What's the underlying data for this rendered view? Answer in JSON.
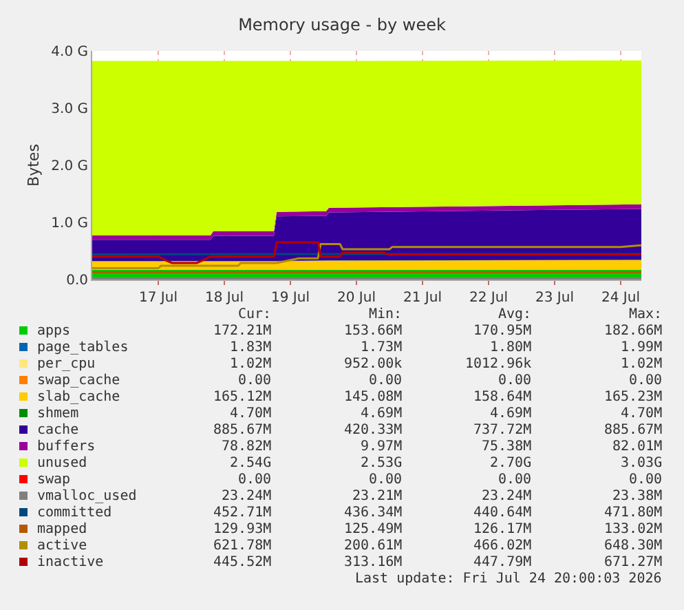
{
  "chart_data": {
    "type": "area",
    "title": "Memory usage - by week",
    "ylabel": "Bytes",
    "stacked": true,
    "grid": true,
    "legend": "bottom",
    "x": [
      "2026-07-16T00:00",
      "2026-07-17T19:00",
      "2026-07-17T20:00",
      "2026-07-18T18:00",
      "2026-07-18T19:00",
      "2026-07-19T13:00",
      "2026-07-19T14:00",
      "2026-07-24T07:30"
    ],
    "xlim": [
      "2026-07-16T00:00",
      "2026-07-24T07:30"
    ],
    "xticks": [
      {
        "value": "2026-07-17",
        "label": "17 Jul"
      },
      {
        "value": "2026-07-18",
        "label": "18 Jul"
      },
      {
        "value": "2026-07-19",
        "label": "19 Jul"
      },
      {
        "value": "2026-07-20",
        "label": "20 Jul"
      },
      {
        "value": "2026-07-21",
        "label": "21 Jul"
      },
      {
        "value": "2026-07-22",
        "label": "22 Jul"
      },
      {
        "value": "2026-07-23",
        "label": "23 Jul"
      },
      {
        "value": "2026-07-24",
        "label": "24 Jul"
      }
    ],
    "ylim": [
      0,
      4
    ],
    "yticks": [
      {
        "value": 0,
        "label": "0.0"
      },
      {
        "value": 1,
        "label": "1.0 G"
      },
      {
        "value": 2,
        "label": "2.0 G"
      },
      {
        "value": 3,
        "label": "3.0 G"
      },
      {
        "value": 4,
        "label": "4.0 G"
      }
    ],
    "series": [
      {
        "name": "apps",
        "color": "#00cc00",
        "values": [
          0.17,
          0.17,
          0.17,
          0.17,
          0.17,
          0.17,
          0.17,
          0.17
        ]
      },
      {
        "name": "page_tables",
        "color": "#0066b3",
        "values": [
          null,
          null,
          null,
          null,
          null,
          null,
          null,
          null
        ]
      },
      {
        "name": "per_cpu",
        "color": "#ffe680",
        "values": [
          null,
          null,
          null,
          null,
          null,
          null,
          null,
          null
        ]
      },
      {
        "name": "swap_cache",
        "color": "#ff8000",
        "values": [
          null,
          null,
          null,
          null,
          null,
          null,
          null,
          null
        ]
      },
      {
        "name": "slab_cache",
        "color": "#ffcc00",
        "values": [
          0.15,
          0.15,
          0.15,
          0.15,
          0.15,
          0.16,
          0.16,
          0.17
        ]
      },
      {
        "name": "shmem",
        "color": "#008f00",
        "values": [
          0.005,
          0.005,
          0.005,
          0.005,
          0.005,
          0.005,
          0.005,
          0.005
        ]
      },
      {
        "name": "cache",
        "color": "#330099",
        "values": [
          0.37,
          0.37,
          0.44,
          0.44,
          0.78,
          0.78,
          0.84,
          0.89
        ]
      },
      {
        "name": "buffers",
        "color": "#990099",
        "values": [
          0.08,
          0.08,
          0.08,
          0.08,
          0.08,
          0.08,
          0.08,
          0.08
        ]
      },
      {
        "name": "unused",
        "color": "#ccff00",
        "values": [
          3.05,
          3.05,
          2.98,
          2.98,
          2.64,
          2.63,
          2.57,
          2.52
        ]
      },
      {
        "name": "swap",
        "color": "#ff0000",
        "values": [
          null,
          null,
          null,
          null,
          null,
          null,
          null,
          null
        ]
      },
      {
        "name": "vmalloc_used",
        "color": "#808080",
        "type": "line",
        "x": [
          "2026-07-16T00:00",
          "2026-07-24T07:30"
        ],
        "values": [
          0.02,
          0.02
        ]
      },
      {
        "name": "committed",
        "color": "#00487d",
        "type": "line",
        "x": [
          "2026-07-16T00:00",
          "2026-07-24T07:30"
        ],
        "values": [
          0.44,
          0.45
        ]
      },
      {
        "name": "mapped",
        "color": "#b35a00",
        "type": "line",
        "x": [
          "2026-07-16T00:00",
          "2026-07-24T07:30"
        ],
        "values": [
          0.13,
          0.13
        ]
      },
      {
        "name": "active",
        "color": "#b38f00",
        "type": "line",
        "x": [
          "2026-07-16T00:00",
          "2026-07-17T00:00",
          "2026-07-17T01:00",
          "2026-07-17T19:00",
          "2026-07-18T05:00",
          "2026-07-18T06:00",
          "2026-07-18T19:00",
          "2026-07-19T03:00",
          "2026-07-19T10:00",
          "2026-07-19T11:00",
          "2026-07-19T18:00",
          "2026-07-19T19:00",
          "2026-07-20T12:00",
          "2026-07-20T13:00",
          "2026-07-24T00:00",
          "2026-07-24T07:30"
        ],
        "values": [
          0.2,
          0.2,
          0.24,
          0.24,
          0.24,
          0.29,
          0.29,
          0.37,
          0.37,
          0.62,
          0.62,
          0.53,
          0.53,
          0.57,
          0.57,
          0.6
        ]
      },
      {
        "name": "inactive",
        "color": "#b30000",
        "type": "line",
        "x": [
          "2026-07-16T00:00",
          "2026-07-17T00:00",
          "2026-07-17T03:00",
          "2026-07-17T05:00",
          "2026-07-17T14:00",
          "2026-07-17T19:00",
          "2026-07-18T18:00",
          "2026-07-18T19:00",
          "2026-07-19T10:00",
          "2026-07-19T11:00",
          "2026-07-19T18:00",
          "2026-07-19T19:00",
          "2026-07-20T10:00",
          "2026-07-20T11:00",
          "2026-07-24T07:30"
        ],
        "values": [
          0.4,
          0.4,
          0.33,
          0.29,
          0.29,
          0.4,
          0.4,
          0.65,
          0.65,
          0.4,
          0.4,
          0.47,
          0.47,
          0.44,
          0.44
        ]
      }
    ],
    "annotations": [
      "Cur:",
      "Min:",
      "Avg:",
      "Max:",
      "172.21M",
      "153.66M",
      "170.95M",
      "182.66M",
      "1.83M",
      "1.73M",
      "1.80M",
      "1.99M",
      "1.02M",
      "952.00k",
      "1012.96k",
      "1.02M",
      "0.00",
      "0.00",
      "0.00",
      "0.00",
      "165.12M",
      "145.08M",
      "158.64M",
      "165.23M",
      "4.70M",
      "4.69M",
      "4.69M",
      "4.70M",
      "885.67M",
      "420.33M",
      "737.72M",
      "885.67M",
      "78.82M",
      "9.97M",
      "75.38M",
      "82.01M",
      "2.54G",
      "2.53G",
      "2.70G",
      "3.03G",
      "0.00",
      "0.00",
      "0.00",
      "0.00",
      "23.24M",
      "23.21M",
      "23.24M",
      "23.38M",
      "452.71M",
      "436.34M",
      "440.64M",
      "471.80M",
      "129.93M",
      "125.49M",
      "126.17M",
      "133.02M",
      "621.78M",
      "200.61M",
      "466.02M",
      "648.30M",
      "445.52M",
      "313.16M",
      "447.79M",
      "671.27M",
      "Last update: Fri Jul 24 20:00:03 2026"
    ]
  }
}
